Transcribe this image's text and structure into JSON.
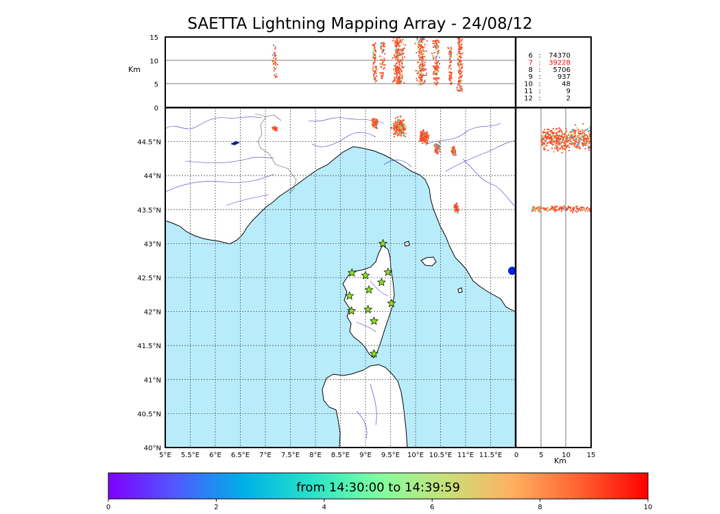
{
  "title": "SAETTA Lightning Mapping Array - 24/08/12",
  "map": {
    "lon_range": [
      5,
      12
    ],
    "lat_range": [
      40,
      45
    ],
    "x_ticks": [
      "5°E",
      "5.5°E",
      "6°E",
      "6.5°E",
      "7°E",
      "7.5°E",
      "8°E",
      "8.5°E",
      "9°E",
      "9.5°E",
      "10°E",
      "10.5°E",
      "11°E",
      "11.5°E"
    ],
    "y_ticks": [
      "40°N",
      "40.5°N",
      "41°N",
      "41.5°N",
      "42°N",
      "42.5°N",
      "43°N",
      "43.5°N",
      "44°N",
      "44.5°N"
    ],
    "colors": {
      "sea": "#b9ecfb",
      "land": "#ffffff",
      "grid": "#555555",
      "rivers": "#3333cc",
      "borders": "#555555",
      "station": "#8be31a",
      "lightning": "#ff4a25",
      "marker": "#0022dd"
    },
    "stations": [
      {
        "lon": 9.35,
        "lat": 43.0
      },
      {
        "lon": 8.73,
        "lat": 42.57
      },
      {
        "lon": 9.0,
        "lat": 42.53
      },
      {
        "lon": 9.45,
        "lat": 42.58
      },
      {
        "lon": 9.32,
        "lat": 42.43
      },
      {
        "lon": 9.07,
        "lat": 42.32
      },
      {
        "lon": 8.68,
        "lat": 42.23
      },
      {
        "lon": 9.52,
        "lat": 42.12
      },
      {
        "lon": 9.05,
        "lat": 42.03
      },
      {
        "lon": 8.72,
        "lat": 42.01
      },
      {
        "lon": 9.17,
        "lat": 41.86
      },
      {
        "lon": 9.17,
        "lat": 41.38
      }
    ],
    "lightning_clusters": [
      {
        "lon": 7.18,
        "lat": 44.7,
        "rlon": 0.07,
        "rlat": 0.04,
        "n": 30
      },
      {
        "lon": 9.18,
        "lat": 44.78,
        "rlon": 0.08,
        "rlat": 0.1,
        "n": 80
      },
      {
        "lon": 9.66,
        "lat": 44.73,
        "rlon": 0.18,
        "rlat": 0.18,
        "n": 260
      },
      {
        "lon": 10.15,
        "lat": 44.57,
        "rlon": 0.13,
        "rlat": 0.13,
        "n": 160
      },
      {
        "lon": 10.42,
        "lat": 44.42,
        "rlon": 0.08,
        "rlat": 0.11,
        "n": 70
      },
      {
        "lon": 10.75,
        "lat": 44.38,
        "rlon": 0.07,
        "rlat": 0.08,
        "n": 50
      },
      {
        "lon": 10.8,
        "lat": 43.53,
        "rlon": 0.07,
        "rlat": 0.09,
        "n": 60
      }
    ],
    "marker": {
      "lon": 12.0,
      "lat": 42.6
    }
  },
  "alt_top": {
    "axis_label": "Km",
    "y_ticks": [
      "0",
      "5",
      "10",
      "15"
    ],
    "range": [
      0,
      15
    ],
    "gridlines": [
      5,
      10
    ],
    "columns": [
      {
        "lon": 7.18,
        "alt_min": 6.5,
        "alt_max": 13.5,
        "rlon": 0.06,
        "n": 40
      },
      {
        "lon": 9.17,
        "alt_min": 5.5,
        "alt_max": 14.0,
        "rlon": 0.06,
        "n": 70
      },
      {
        "lon": 9.33,
        "alt_min": 6.0,
        "alt_max": 14.0,
        "rlon": 0.07,
        "n": 60
      },
      {
        "lon": 9.65,
        "alt_min": 5.0,
        "alt_max": 15.0,
        "rlon": 0.15,
        "n": 250
      },
      {
        "lon": 10.1,
        "alt_min": 5.0,
        "alt_max": 15.0,
        "rlon": 0.13,
        "n": 190
      },
      {
        "lon": 10.4,
        "alt_min": 5.0,
        "alt_max": 14.5,
        "rlon": 0.1,
        "n": 120
      },
      {
        "lon": 10.68,
        "alt_min": 5.0,
        "alt_max": 13.0,
        "rlon": 0.06,
        "n": 60
      },
      {
        "lon": 10.87,
        "alt_min": 3.5,
        "alt_max": 15.0,
        "rlon": 0.08,
        "n": 130
      }
    ]
  },
  "alt_side": {
    "axis_label": "Km",
    "x_ticks": [
      "0",
      "5",
      "10",
      "15"
    ],
    "range": [
      0,
      15
    ],
    "gridlines": [
      5,
      10
    ],
    "blobs": [
      {
        "lat": 44.55,
        "alt_min": 5,
        "alt_max": 15,
        "rlat": 0.25,
        "n": 500
      },
      {
        "lat": 43.52,
        "alt_min": 3,
        "alt_max": 15,
        "rlat": 0.06,
        "n": 180
      }
    ]
  },
  "stats": [
    {
      "level": "6",
      "sep": ":",
      "count": "74370",
      "color": "#000000"
    },
    {
      "level": "7",
      "sep": ":",
      "count": "39228",
      "color": "#ff0000"
    },
    {
      "level": "8",
      "sep": ":",
      "count": "5706",
      "color": "#000000"
    },
    {
      "level": "9",
      "sep": ":",
      "count": "937",
      "color": "#000000"
    },
    {
      "level": "10",
      "sep": ":",
      "count": "48",
      "color": "#000000"
    },
    {
      "level": "11",
      "sep": ":",
      "count": "9",
      "color": "#000000"
    },
    {
      "level": "12",
      "sep": ":",
      "count": "2",
      "color": "#000000"
    }
  ],
  "colorbar": {
    "label": "from 14:30:00 to 14:39:59",
    "ticks": [
      "0",
      "2",
      "4",
      "6",
      "8",
      "10"
    ],
    "range": [
      0,
      10
    ],
    "stops": [
      "#7f00ff",
      "#4f5aff",
      "#00b0e8",
      "#26e2c9",
      "#80ffa0",
      "#c9e07a",
      "#ffb060",
      "#ff6030",
      "#ff0000"
    ]
  }
}
